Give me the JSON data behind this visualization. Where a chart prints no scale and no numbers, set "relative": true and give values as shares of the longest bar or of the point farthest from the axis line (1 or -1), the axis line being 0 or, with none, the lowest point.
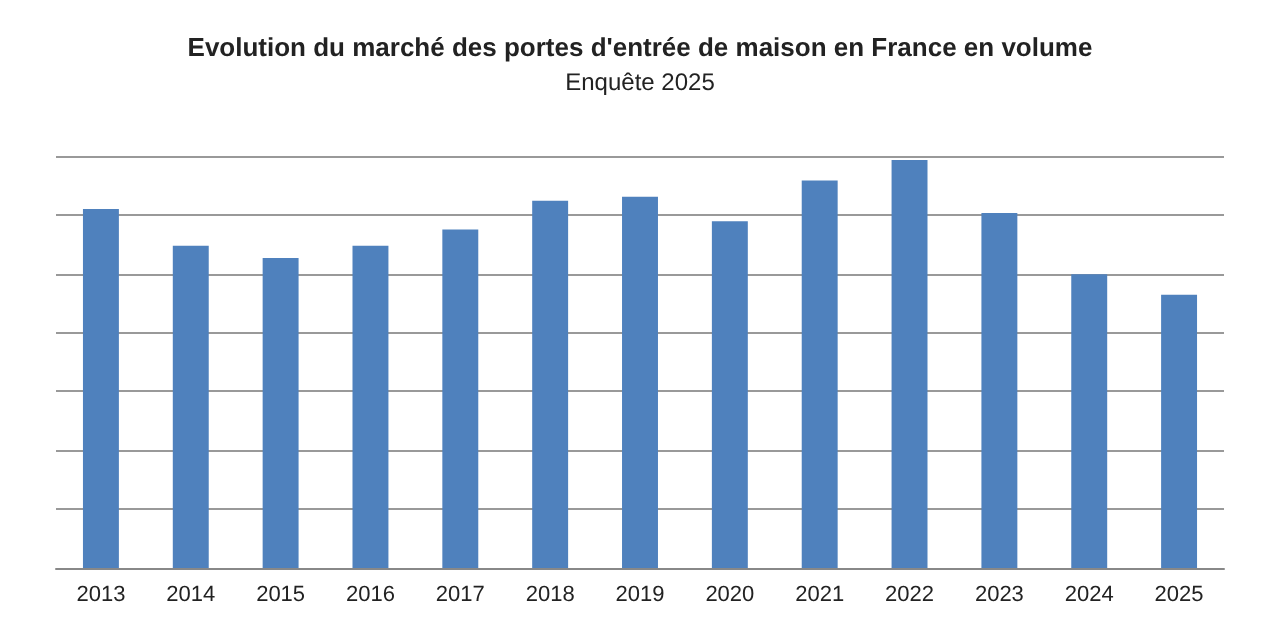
{
  "chart_data": {
    "type": "bar",
    "title": "Evolution du marché des portes d'entrée de maison en France en volume",
    "subtitle": "Enquête 2025",
    "categories": [
      "2013",
      "2014",
      "2015",
      "2016",
      "2017",
      "2018",
      "2019",
      "2020",
      "2021",
      "2022",
      "2023",
      "2024",
      "2025"
    ],
    "values": [
      0.88,
      0.79,
      0.76,
      0.79,
      0.83,
      0.9,
      0.91,
      0.85,
      0.95,
      1,
      0.87,
      0.72,
      0.67
    ],
    "color": "#4f81bd",
    "relative": true,
    "grid": "y"
  }
}
